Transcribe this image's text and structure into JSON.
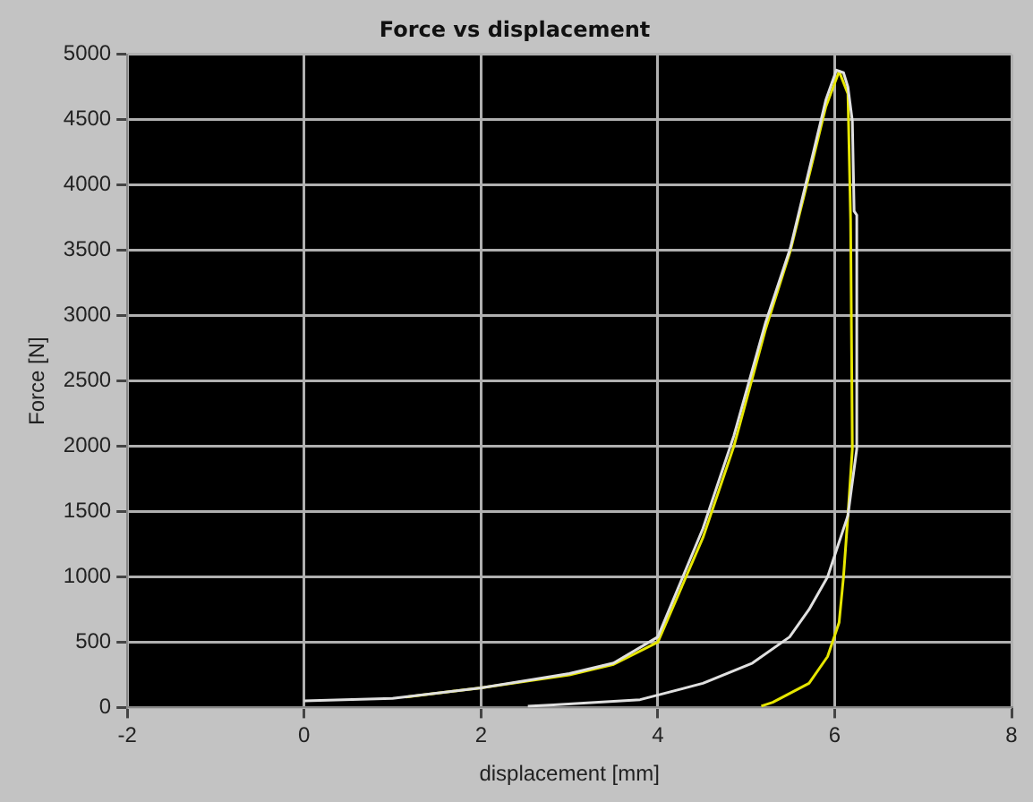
{
  "chart_data": {
    "type": "line",
    "title": "Force vs displacement",
    "xlabel": "displacement [mm]",
    "ylabel": "Force [N]",
    "xlim": [
      -2,
      8
    ],
    "xticks": [
      -2,
      0,
      2,
      4,
      6,
      8
    ],
    "ylim": [
      0,
      5000
    ],
    "yticks": [
      0,
      500,
      1000,
      1500,
      2000,
      2500,
      3000,
      3500,
      4000,
      4500,
      5000
    ],
    "grid": true,
    "legend": false,
    "marker": "none",
    "line_style": "solid",
    "series": [
      {
        "color": "#e0e0e0",
        "x": [
          0,
          1,
          2,
          3,
          3.5,
          4,
          4.51,
          4.86,
          5.22,
          5.5,
          5.72,
          5.9,
          6.02,
          6.1,
          6.15,
          6.2,
          6.22,
          6.25,
          6.25,
          6.15,
          5.92,
          5.71,
          5.49,
          5.07,
          4.51,
          3.8,
          2.82,
          2.53
        ],
        "values": [
          50,
          70,
          150,
          260,
          340,
          540,
          1370,
          2080,
          2950,
          3520,
          4140,
          4650,
          4880,
          4860,
          4750,
          4490,
          3800,
          3770,
          1980,
          1470,
          1000,
          750,
          540,
          340,
          185,
          60,
          20,
          10
        ]
      },
      {
        "color": "#e6e600",
        "x": [
          1.15,
          2,
          3,
          3.5,
          4,
          4.51,
          4.86,
          5.22,
          5.5,
          5.72,
          5.9,
          6.05,
          6.15,
          6.18,
          6.2,
          6.15,
          6.1,
          6.05,
          5.92,
          5.71,
          5.3,
          5.17
        ],
        "values": [
          80,
          150,
          250,
          330,
          500,
          1300,
          2000,
          2900,
          3500,
          4100,
          4600,
          4870,
          4700,
          3740,
          1980,
          1470,
          1000,
          650,
          390,
          185,
          40,
          10
        ]
      }
    ]
  }
}
